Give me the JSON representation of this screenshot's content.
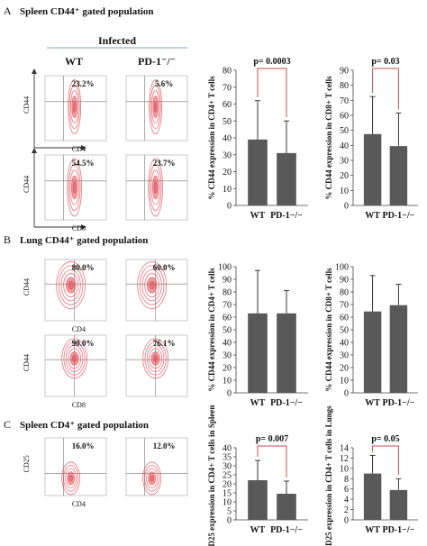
{
  "sections": [
    {
      "letter": "A",
      "title": "Spleen CD44⁺ gated population"
    },
    {
      "letter": "B",
      "title": "Lung CD44⁺ gated population"
    },
    {
      "letter": "C",
      "title": "Spleen CD4⁺ gated population"
    }
  ],
  "flow": {
    "infected_label": "Infected",
    "col_wt": "WT",
    "col_ko": "PD-1⁻/⁻",
    "panels": [
      {
        "y_marker": "CD44",
        "x_marker": "CD4",
        "wt_percent": "23.2%",
        "ko_percent": "5.6%"
      },
      {
        "y_marker": "CD44",
        "x_marker": "CD8",
        "wt_percent": "54.5%",
        "ko_percent": "23.7%"
      },
      {
        "y_marker": "CD44",
        "x_marker": "CD4",
        "wt_percent": "80.0%",
        "ko_percent": "60.0%"
      },
      {
        "y_marker": "CD44",
        "x_marker": "CD8",
        "wt_percent": "90.0%",
        "ko_percent": "76.1%"
      },
      {
        "y_marker": "CD25",
        "x_marker": "CD4",
        "wt_percent": "16.0%",
        "ko_percent": "12.0%"
      }
    ]
  },
  "colors": {
    "bar": "#595959",
    "bracket": "#c0504d",
    "contour": "#e0505a"
  },
  "chart_data": [
    {
      "type": "bar",
      "categories": [
        "WT",
        "PD-1−/−"
      ],
      "values": [
        39,
        31
      ],
      "errors": [
        23,
        19
      ],
      "ylabel": "% CD44 expression in CD4+ T cells",
      "ylim": [
        0,
        80
      ],
      "ticks": [
        0,
        10,
        20,
        30,
        40,
        50,
        60,
        70,
        80
      ],
      "pvalue": "p= 0.0003"
    },
    {
      "type": "bar",
      "categories": [
        "WT",
        "PD-1−/−"
      ],
      "values": [
        47.5,
        39.5
      ],
      "errors": [
        25,
        22
      ],
      "ylabel": "% CD44 expression in CD8+ T cells",
      "ylim": [
        0,
        90
      ],
      "ticks": [
        0,
        10,
        20,
        30,
        40,
        50,
        60,
        70,
        80,
        90
      ],
      "pvalue": "p= 0.03"
    },
    {
      "type": "bar",
      "categories": [
        "WT",
        "PD-1−/−"
      ],
      "values": [
        63,
        63
      ],
      "errors": [
        34,
        18
      ],
      "ylabel": "% CD44 expression in CD4+ T cells",
      "ylim": [
        0,
        100
      ],
      "ticks": [
        0,
        10,
        20,
        30,
        40,
        50,
        60,
        70,
        80,
        90,
        100
      ],
      "pvalue": ""
    },
    {
      "type": "bar",
      "categories": [
        "WT",
        "PD-1−/−"
      ],
      "values": [
        64.5,
        69.5
      ],
      "errors": [
        28.5,
        16.5
      ],
      "ylabel": "% CD44 expression in CD8+ T cells",
      "ylim": [
        0,
        100
      ],
      "ticks": [
        0,
        10,
        20,
        30,
        40,
        50,
        60,
        70,
        80,
        90,
        100
      ],
      "pvalue": ""
    },
    {
      "type": "bar",
      "categories": [
        "WT",
        "PD-1−/−"
      ],
      "values": [
        22,
        14.5
      ],
      "errors": [
        11,
        7
      ],
      "ylabel": "% CD25 expression in CD4+ T cells in Spleen",
      "ylim": [
        0,
        40
      ],
      "ticks": [
        0,
        5,
        10,
        15,
        20,
        25,
        30,
        35,
        40
      ],
      "pvalue": "p= 0.007"
    },
    {
      "type": "bar",
      "categories": [
        "WT",
        "PD-1−/−"
      ],
      "values": [
        9,
        5.8
      ],
      "errors": [
        3.5,
        2.2
      ],
      "ylabel": "% CD25 expression in CD4+ T cells in Lungs",
      "ylim": [
        0,
        14
      ],
      "ticks": [
        0,
        2,
        4,
        6,
        8,
        10,
        12,
        14
      ],
      "pvalue": "p= 0.05"
    }
  ]
}
